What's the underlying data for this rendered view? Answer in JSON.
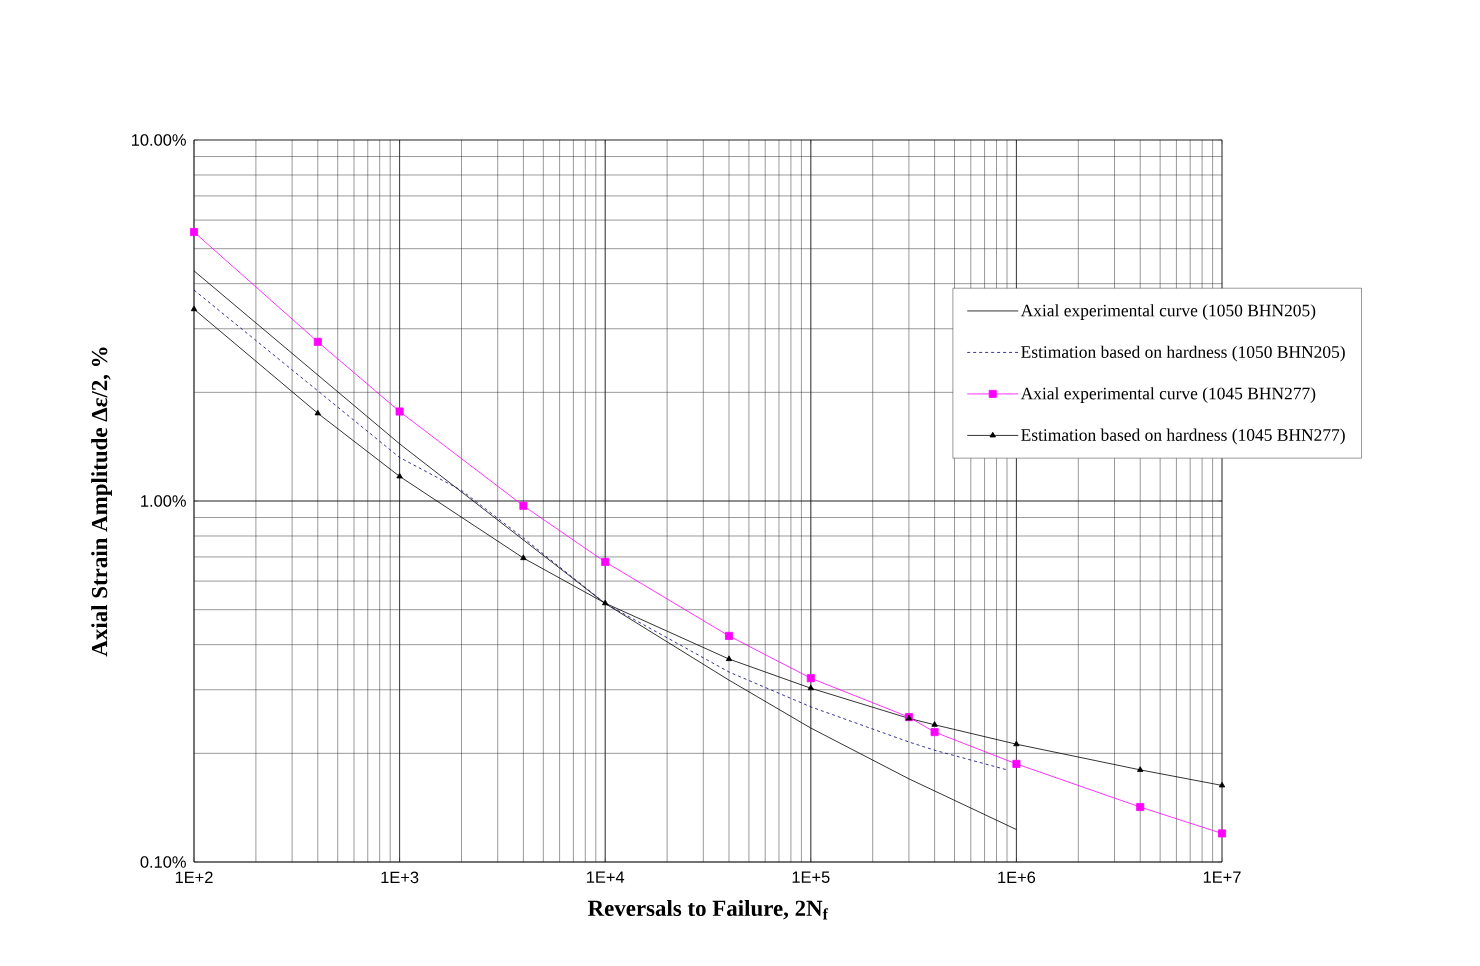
{
  "chart_data": {
    "type": "line",
    "xlabel": "Reversals to Failure, 2N$_{f}$",
    "ylabel": "Axial Strain Amplitude Δε/2, %",
    "log": "xy",
    "grid": true,
    "legend": "right",
    "xlim": [
      100,
      10000000
    ],
    "ylim": [
      0.1,
      10
    ],
    "xticks": [
      {
        "value": 100,
        "label": "1E+2"
      },
      {
        "value": 1000,
        "label": "1E+3"
      },
      {
        "value": 10000,
        "label": "1E+4"
      },
      {
        "value": 100000,
        "label": "1E+5"
      },
      {
        "value": 1000000,
        "label": "1E+6"
      },
      {
        "value": 10000000,
        "label": "1E+7"
      }
    ],
    "yticks": [
      {
        "value": 0.1,
        "label": "0.10%"
      },
      {
        "value": 1,
        "label": "1.00%"
      },
      {
        "value": 10,
        "label": "10.00%"
      }
    ],
    "series": [
      {
        "name": "Axial experimental curve (1050 BHN205)",
        "color": "#000000",
        "marker": "none",
        "line_style": "solid",
        "x": [
          100,
          1000,
          10000,
          40000,
          100000,
          300000,
          1000000
        ],
        "values": [
          4.34,
          1.44,
          0.52,
          0.319,
          0.235,
          0.17,
          0.123
        ]
      },
      {
        "name": "Estimation based on hardness (1050 BHN205)",
        "color": "#000080",
        "marker": "none",
        "line_style": "dashed",
        "x": [
          100,
          1000,
          2000,
          4000,
          10000,
          40000,
          100000,
          300000,
          400000,
          900000
        ],
        "values": [
          3.84,
          1.32,
          1.07,
          0.79,
          0.52,
          0.336,
          0.269,
          0.215,
          0.204,
          0.18
        ]
      },
      {
        "name": "Axial experimental curve (1045 BHN277)",
        "color": "#ff00ff",
        "marker": "square",
        "line_style": "solid",
        "x": [
          100,
          400,
          1000,
          4000,
          10000,
          40000,
          100000,
          300000,
          400000,
          1000000,
          4000000,
          10000000
        ],
        "values": [
          5.56,
          2.76,
          1.77,
          0.97,
          0.678,
          0.423,
          0.323,
          0.252,
          0.229,
          0.187,
          0.142,
          0.12
        ]
      },
      {
        "name": "Estimation based on hardness (1045 BHN277)",
        "color": "#000000",
        "marker": "triangle",
        "line_style": "solid",
        "x": [
          100,
          400,
          1000,
          4000,
          10000,
          40000,
          100000,
          300000,
          400000,
          1000000,
          4000000,
          10000000
        ],
        "values": [
          3.4,
          1.75,
          1.17,
          0.695,
          0.521,
          0.365,
          0.303,
          0.25,
          0.24,
          0.212,
          0.18,
          0.163
        ]
      }
    ]
  }
}
